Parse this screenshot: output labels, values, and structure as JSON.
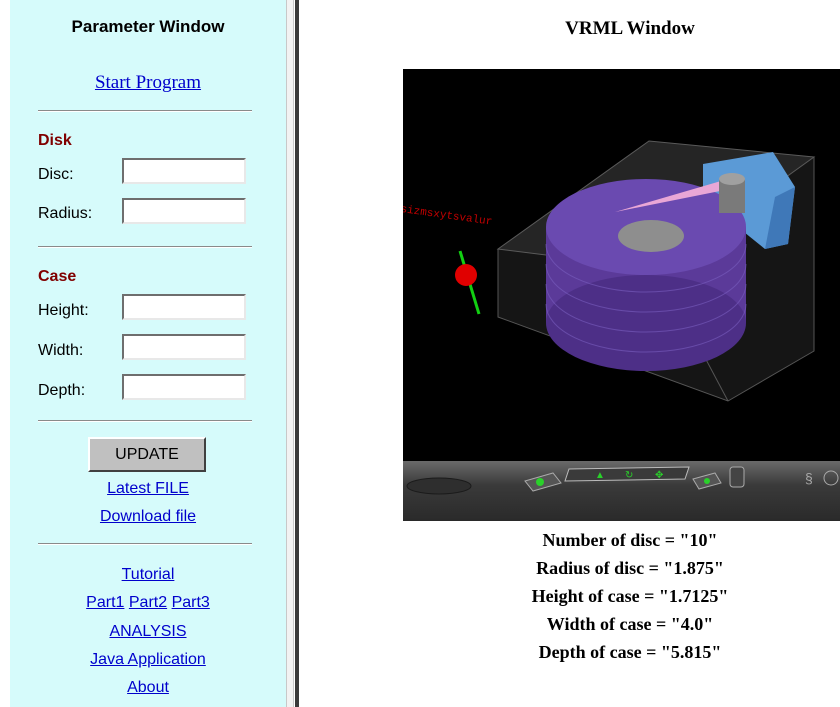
{
  "parameter_window": {
    "title": "Parameter Window",
    "start_program": "Start Program",
    "disk": {
      "heading": "Disk",
      "fields": [
        {
          "label": "Disc:",
          "value": ""
        },
        {
          "label": "Radius:",
          "value": ""
        }
      ]
    },
    "case": {
      "heading": "Case",
      "fields": [
        {
          "label": "Height:",
          "value": ""
        },
        {
          "label": "Width:",
          "value": ""
        },
        {
          "label": "Depth:",
          "value": ""
        }
      ]
    },
    "update_button": "UPDATE",
    "latest_file": "Latest FILE",
    "download_file": "Download file",
    "links": {
      "tutorial": "Tutorial",
      "part1": "Part1",
      "part2": "Part2",
      "part3": "Part3",
      "analysis": "ANALYSIS",
      "java_application": "Java Application",
      "about": "About"
    }
  },
  "vrml_window": {
    "title": "VRML Window",
    "scene_label": "sizmsxytsvalur",
    "colors": {
      "disc": "#5b3a99",
      "case": "#2a2a2a",
      "head_block": "#5b9ad6",
      "arm": "#e9a7d6",
      "marker": "#e00000",
      "marker_axis": "#12d012"
    }
  },
  "results": [
    "Number of disc = \"10\"",
    "Radius of disc = \"1.875\"",
    "Height of case = \"1.7125\"",
    "Width of case = \"4.0\"",
    "Depth of case = \"5.815\""
  ]
}
